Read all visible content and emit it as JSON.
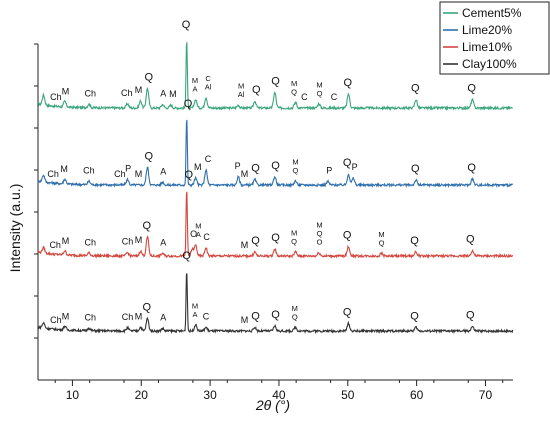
{
  "chart_data": {
    "type": "line",
    "xlabel": "2θ (°)",
    "ylabel": "Intensity (a.u.)",
    "xlim": [
      5,
      74
    ],
    "x_ticks": [
      10,
      20,
      30,
      40,
      50,
      60,
      70
    ],
    "y_tick_count": 8,
    "grid": false,
    "legend_position": "top-right",
    "series": [
      {
        "name": "Cement5%",
        "color": "#3aa57c",
        "baseline_index": 3,
        "peaks": [
          [
            5.8,
            0.14
          ],
          [
            8.9,
            0.08
          ],
          [
            12.4,
            0.05
          ],
          [
            18.0,
            0.06
          ],
          [
            19.9,
            0.1
          ],
          [
            20.9,
            0.28
          ],
          [
            23.1,
            0.05
          ],
          [
            24.3,
            0.04
          ],
          [
            26.6,
            1.0
          ],
          [
            27.9,
            0.12
          ],
          [
            29.4,
            0.15
          ],
          [
            34.1,
            0.04
          ],
          [
            36.5,
            0.1
          ],
          [
            39.4,
            0.22
          ],
          [
            42.4,
            0.08
          ],
          [
            45.8,
            0.06
          ],
          [
            50.1,
            0.2
          ],
          [
            59.9,
            0.12
          ],
          [
            68.1,
            0.12
          ]
        ],
        "annotations": [
          {
            "x": 7.6,
            "label": "Ch"
          },
          {
            "x": 9.0,
            "label": "M"
          },
          {
            "x": 12.6,
            "label": "Ch"
          },
          {
            "x": 17.9,
            "label": "Ch"
          },
          {
            "x": 19.6,
            "label": "M"
          },
          {
            "x": 21.1,
            "label": "Q"
          },
          {
            "x": 23.2,
            "label": "A"
          },
          {
            "x": 24.6,
            "label": "M"
          },
          {
            "x": 26.5,
            "label": "Q"
          },
          {
            "x": 27.8,
            "label": "M\nA"
          },
          {
            "x": 29.7,
            "label": "C\nAl"
          },
          {
            "x": 34.5,
            "label": "M\nAl"
          },
          {
            "x": 36.7,
            "label": "Q"
          },
          {
            "x": 39.5,
            "label": "Q"
          },
          {
            "x": 42.2,
            "label": "M\nQ"
          },
          {
            "x": 43.7,
            "label": "C"
          },
          {
            "x": 45.9,
            "label": "M\nQ"
          },
          {
            "x": 48.0,
            "label": "C"
          },
          {
            "x": 50.0,
            "label": "Q"
          },
          {
            "x": 59.8,
            "label": "Q"
          },
          {
            "x": 68.0,
            "label": "Q"
          }
        ]
      },
      {
        "name": "Lime20%",
        "color": "#2f6fad",
        "baseline_index": 2,
        "peaks": [
          [
            5.8,
            0.1
          ],
          [
            8.9,
            0.07
          ],
          [
            12.4,
            0.05
          ],
          [
            18.0,
            0.08
          ],
          [
            20.9,
            0.26
          ],
          [
            23.1,
            0.04
          ],
          [
            26.6,
            1.0
          ],
          [
            27.9,
            0.1
          ],
          [
            29.4,
            0.22
          ],
          [
            34.1,
            0.12
          ],
          [
            36.5,
            0.08
          ],
          [
            39.4,
            0.12
          ],
          [
            42.4,
            0.06
          ],
          [
            47.1,
            0.05
          ],
          [
            50.1,
            0.16
          ],
          [
            50.8,
            0.1
          ],
          [
            59.9,
            0.07
          ],
          [
            68.1,
            0.09
          ]
        ],
        "annotations": [
          {
            "x": 7.2,
            "label": "Ch"
          },
          {
            "x": 8.8,
            "label": "M"
          },
          {
            "x": 12.4,
            "label": "Ch"
          },
          {
            "x": 16.9,
            "label": "Ch"
          },
          {
            "x": 18.1,
            "label": "P"
          },
          {
            "x": 19.6,
            "label": "M"
          },
          {
            "x": 21.1,
            "label": "Q"
          },
          {
            "x": 23.2,
            "label": "A"
          },
          {
            "x": 26.8,
            "label": "Q"
          },
          {
            "x": 28.2,
            "label": "M"
          },
          {
            "x": 29.7,
            "label": "C"
          },
          {
            "x": 34.0,
            "label": "P"
          },
          {
            "x": 35.0,
            "label": "M"
          },
          {
            "x": 36.6,
            "label": "Q"
          },
          {
            "x": 39.5,
            "label": "Q"
          },
          {
            "x": 42.4,
            "label": "M\nQ"
          },
          {
            "x": 47.3,
            "label": "P"
          },
          {
            "x": 49.9,
            "label": "Q"
          },
          {
            "x": 51.0,
            "label": "P"
          },
          {
            "x": 59.8,
            "label": "Q"
          },
          {
            "x": 68.0,
            "label": "Q"
          }
        ]
      },
      {
        "name": "Lime10%",
        "color": "#d4473f",
        "baseline_index": 1,
        "peaks": [
          [
            5.8,
            0.08
          ],
          [
            8.9,
            0.06
          ],
          [
            12.4,
            0.04
          ],
          [
            18.0,
            0.05
          ],
          [
            19.9,
            0.07
          ],
          [
            20.9,
            0.28
          ],
          [
            23.1,
            0.04
          ],
          [
            26.6,
            1.0
          ],
          [
            27.4,
            0.1
          ],
          [
            27.9,
            0.16
          ],
          [
            29.4,
            0.12
          ],
          [
            36.5,
            0.06
          ],
          [
            39.4,
            0.1
          ],
          [
            42.4,
            0.06
          ],
          [
            45.8,
            0.05
          ],
          [
            50.1,
            0.14
          ],
          [
            54.9,
            0.04
          ],
          [
            59.9,
            0.06
          ],
          [
            68.1,
            0.08
          ]
        ],
        "annotations": [
          {
            "x": 7.5,
            "label": "Ch"
          },
          {
            "x": 9.0,
            "label": "M"
          },
          {
            "x": 12.6,
            "label": "Ch"
          },
          {
            "x": 18.0,
            "label": "Ch"
          },
          {
            "x": 19.6,
            "label": "M"
          },
          {
            "x": 20.8,
            "label": "Q"
          },
          {
            "x": 23.2,
            "label": "A"
          },
          {
            "x": 26.9,
            "label": "Q"
          },
          {
            "x": 27.6,
            "label": "O"
          },
          {
            "x": 28.3,
            "label": "M\nA"
          },
          {
            "x": 29.5,
            "label": "C"
          },
          {
            "x": 35.0,
            "label": "M"
          },
          {
            "x": 36.6,
            "label": "Q"
          },
          {
            "x": 39.5,
            "label": "Q"
          },
          {
            "x": 42.2,
            "label": "M\nQ"
          },
          {
            "x": 45.9,
            "label": "M\nQ\nO"
          },
          {
            "x": 49.9,
            "label": "Q"
          },
          {
            "x": 54.9,
            "label": "M\nQ"
          },
          {
            "x": 59.7,
            "label": "Q"
          },
          {
            "x": 67.8,
            "label": "Q"
          }
        ]
      },
      {
        "name": "Clay100%",
        "color": "#333333",
        "baseline_index": 0,
        "peaks": [
          [
            5.8,
            0.08
          ],
          [
            8.9,
            0.06
          ],
          [
            12.4,
            0.04
          ],
          [
            18.0,
            0.05
          ],
          [
            19.9,
            0.06
          ],
          [
            20.9,
            0.2
          ],
          [
            23.1,
            0.04
          ],
          [
            26.6,
            1.0
          ],
          [
            27.9,
            0.1
          ],
          [
            29.4,
            0.06
          ],
          [
            36.5,
            0.06
          ],
          [
            39.4,
            0.08
          ],
          [
            42.4,
            0.06
          ],
          [
            50.1,
            0.12
          ],
          [
            59.9,
            0.06
          ],
          [
            68.1,
            0.07
          ]
        ],
        "annotations": [
          {
            "x": 7.6,
            "label": "Ch"
          },
          {
            "x": 9.0,
            "label": "M"
          },
          {
            "x": 12.6,
            "label": "Ch"
          },
          {
            "x": 18.0,
            "label": "Ch"
          },
          {
            "x": 19.6,
            "label": "M"
          },
          {
            "x": 20.8,
            "label": "Q"
          },
          {
            "x": 23.2,
            "label": "A"
          },
          {
            "x": 26.6,
            "label": "Q"
          },
          {
            "x": 27.8,
            "label": "M\nA"
          },
          {
            "x": 29.4,
            "label": "C"
          },
          {
            "x": 35.0,
            "label": "M"
          },
          {
            "x": 36.6,
            "label": "Q"
          },
          {
            "x": 39.5,
            "label": "Q"
          },
          {
            "x": 42.3,
            "label": "M\nQ"
          },
          {
            "x": 49.9,
            "label": "Q"
          },
          {
            "x": 59.7,
            "label": "Q"
          },
          {
            "x": 67.8,
            "label": "Q"
          }
        ]
      }
    ]
  }
}
